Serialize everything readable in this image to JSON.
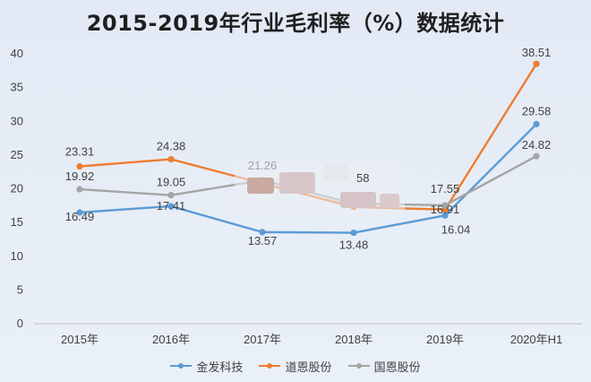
{
  "chart_data": {
    "type": "line",
    "title": "2015-2019年行业毛利率（%）数据统计",
    "categories": [
      "2015年",
      "2016年",
      "2017年",
      "2018年",
      "2019年",
      "2020年H1"
    ],
    "ylim": [
      0,
      40
    ],
    "yticks": [
      0,
      5,
      10,
      15,
      20,
      25,
      30,
      35,
      40
    ],
    "grid": false,
    "legend_position": "bottom",
    "series": [
      {
        "name": "金发科技",
        "color": "#5b9bd5",
        "values": [
          16.49,
          17.41,
          13.57,
          13.48,
          16.04,
          29.58
        ],
        "labels": [
          "16.49",
          "17.41",
          "13.57",
          "13.48",
          "16.04",
          "29.58"
        ]
      },
      {
        "name": "道恩股份",
        "color": "#ed7d31",
        "values": [
          23.31,
          24.38,
          20.8,
          17.3,
          16.91,
          38.51
        ],
        "labels": [
          "23.31",
          "24.38",
          "",
          "",
          "16.91",
          "38.51"
        ]
      },
      {
        "name": "国恩股份",
        "color": "#a5a5a5",
        "values": [
          19.92,
          19.05,
          21.26,
          17.8,
          17.55,
          24.82
        ],
        "labels": [
          "19.92",
          "19.05",
          "21.26",
          "",
          "17.55",
          "24.82"
        ]
      }
    ],
    "annotations": [
      "58"
    ]
  }
}
